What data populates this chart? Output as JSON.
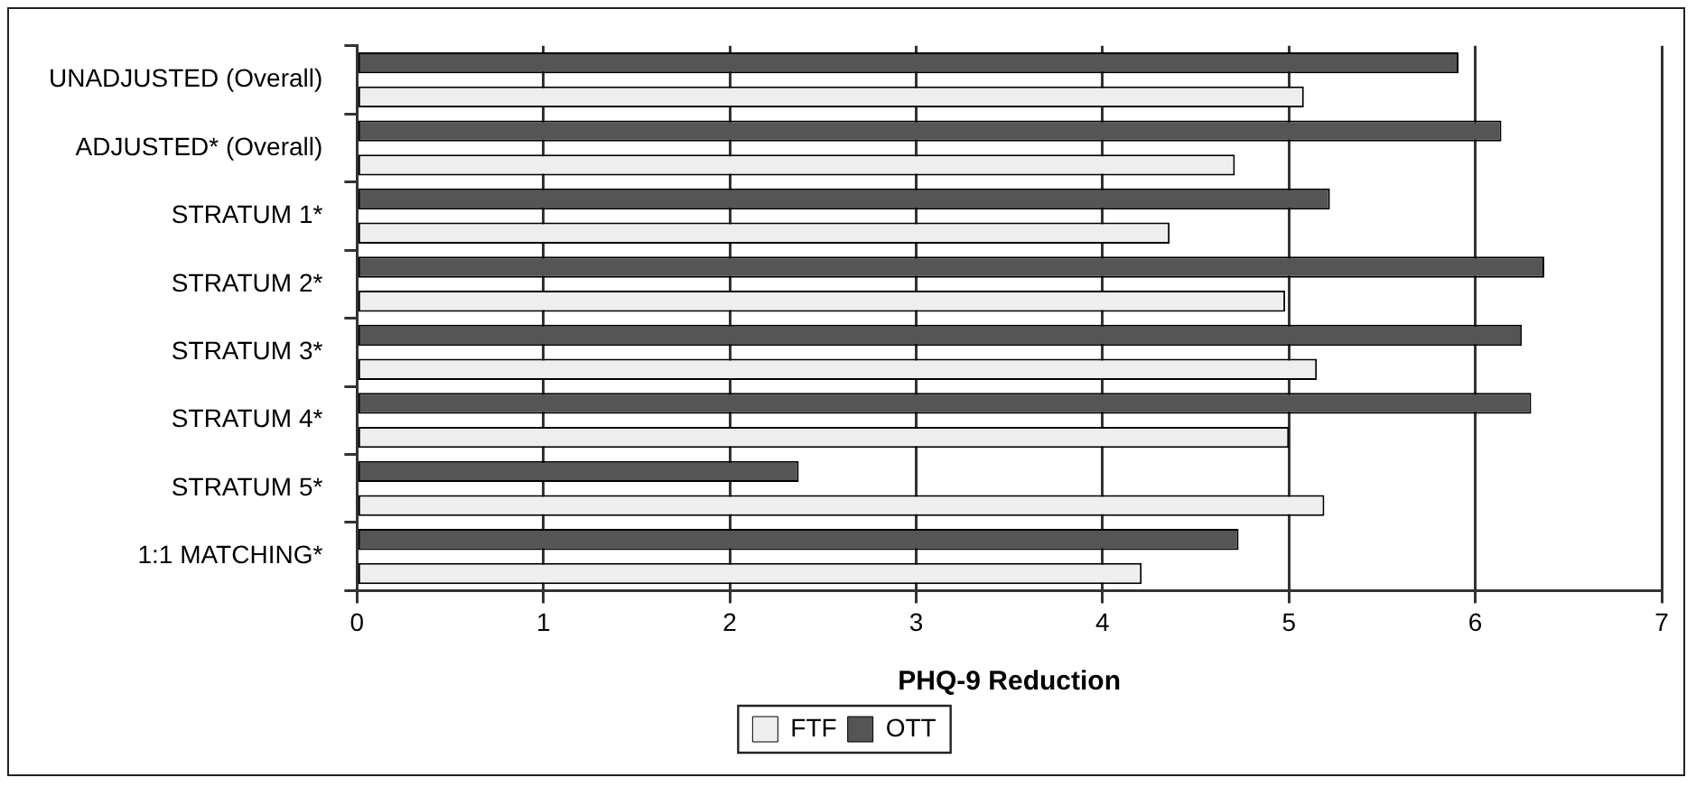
{
  "chart_data": {
    "type": "bar",
    "orientation": "horizontal",
    "xlabel": "PHQ-9 Reduction",
    "categories": [
      "UNADJUSTED (Overall)",
      "ADJUSTED* (Overall)",
      "STRATUM 1*",
      "STRATUM 2*",
      "STRATUM 3*",
      "STRATUM 4*",
      "STRATUM 5*",
      "1:1 MATCHING*"
    ],
    "series": [
      {
        "name": "OTT",
        "color": "#555555",
        "values": [
          5.91,
          6.14,
          5.22,
          6.37,
          6.25,
          6.3,
          2.37,
          4.73
        ]
      },
      {
        "name": "FTF",
        "color": "#eeeeee",
        "values": [
          5.08,
          4.71,
          4.36,
          4.98,
          5.15,
          5.0,
          5.19,
          4.21
        ]
      }
    ],
    "xlim": [
      0,
      7
    ],
    "xticks": [
      0,
      1,
      2,
      3,
      4,
      5,
      6,
      7
    ],
    "grid": "x",
    "legend": "bottom"
  }
}
